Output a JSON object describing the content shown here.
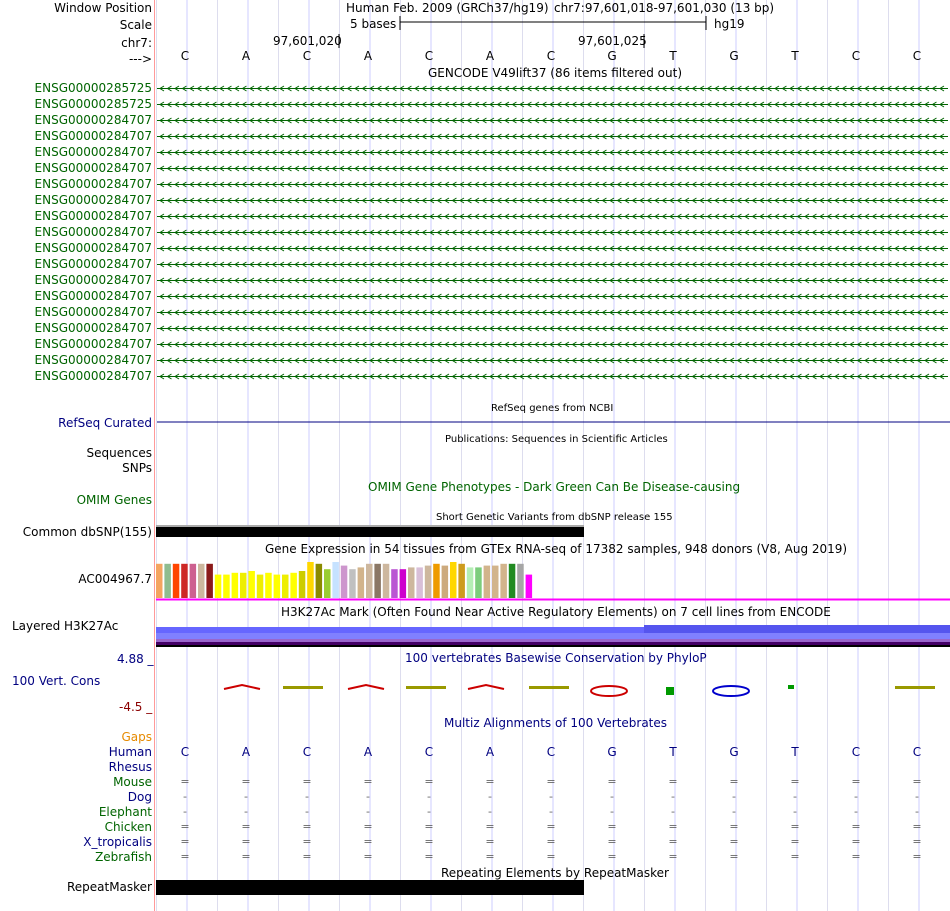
{
  "header": {
    "window_position_label": "Window Position",
    "scale_label": "Scale",
    "chr_label": "chr7:",
    "strand_label": "--->",
    "assembly": "Human Feb. 2009 (GRCh37/hg19)",
    "position": "chr7:97,601,018-97,601,030 (13 bp)",
    "scale_text": "5 bases",
    "db": "hg19",
    "coord1": "97,601,020",
    "coord2": "97,601,025"
  },
  "bases": [
    "C",
    "A",
    "C",
    "A",
    "C",
    "A",
    "C",
    "G",
    "T",
    "G",
    "T",
    "C",
    "C"
  ],
  "gencode": {
    "title": "GENCODE V49lift37 (86 items filtered out)",
    "genes": [
      "ENSG00000285725",
      "ENSG00000285725",
      "ENSG00000284707",
      "ENSG00000284707",
      "ENSG00000284707",
      "ENSG00000284707",
      "ENSG00000284707",
      "ENSG00000284707",
      "ENSG00000284707",
      "ENSG00000284707",
      "ENSG00000284707",
      "ENSG00000284707",
      "ENSG00000284707",
      "ENSG00000284707",
      "ENSG00000284707",
      "ENSG00000284707",
      "ENSG00000284707",
      "ENSG00000284707",
      "ENSG00000284707"
    ]
  },
  "refseq": {
    "title": "RefSeq genes from NCBI",
    "label": "RefSeq Curated"
  },
  "publications": {
    "title": "Publications: Sequences in Scientific Articles",
    "label1": "Sequences",
    "label2": "SNPs"
  },
  "omim": {
    "title": "OMIM Gene Phenotypes - Dark Green Can Be Disease-causing",
    "label": "OMIM Genes"
  },
  "dbsnp": {
    "title": "Short Genetic Variants from dbSNP release 155",
    "label": "Common dbSNP(155)"
  },
  "gtex": {
    "title": "Gene Expression in 54 tissues from GTEx RNA-seq of 17382 samples, 948 donors (V8, Aug 2019)",
    "label": "AC004967.7",
    "bar_colors": [
      "#f4a460",
      "#8fbc8f",
      "#ff4500",
      "#cd2626",
      "#cd6090",
      "#cdb79e",
      "#8b1a1a",
      "#ffff00",
      "#ffff00",
      "#ffff00",
      "#eeee00",
      "#ffff00",
      "#eeee00",
      "#ffff00",
      "#ffff00",
      "#eeee00",
      "#ffff00",
      "#cdcd00",
      "#ffd700",
      "#8b8b00",
      "#9acd32",
      "#c6e2ff",
      "#cd96cd",
      "#c0c0c0",
      "#d2b48c",
      "#cdb79e",
      "#8b7765",
      "#cdb79e",
      "#ba55d3",
      "#cd00cd",
      "#cdb79e",
      "#d8bfd8",
      "#cdb79e",
      "#ee9a00",
      "#cdaa7d",
      "#ffd700",
      "#cd9b1d",
      "#b4eeb4",
      "#7ccd7c",
      "#d2b48c",
      "#d2b48c",
      "#d2b48c",
      "#228b22",
      "#a6a6a6",
      "#ff00ff"
    ],
    "bar_levels": [
      0.95,
      0.95,
      0.95,
      0.95,
      0.95,
      0.95,
      0.95,
      0.65,
      0.65,
      0.7,
      0.7,
      0.75,
      0.65,
      0.7,
      0.65,
      0.65,
      0.7,
      0.75,
      1.0,
      0.95,
      0.8,
      1.0,
      0.9,
      0.8,
      0.85,
      0.95,
      0.95,
      0.95,
      0.8,
      0.8,
      0.85,
      0.85,
      0.9,
      0.95,
      0.9,
      1.0,
      0.95,
      0.85,
      0.85,
      0.9,
      0.9,
      0.95,
      0.95,
      0.95,
      0.65
    ],
    "baseline_color": "#ff00ff"
  },
  "h3k27ac": {
    "title": "H3K27Ac Mark (Often Found Near Active Regulatory Elements) on 7 cell lines from ENCODE",
    "label": "Layered H3K27Ac"
  },
  "phylop": {
    "title": "100 vertebrates Basewise Conservation by PhyloP",
    "label": "100 Vert. Cons",
    "ymax": "4.88 _",
    "ymin": "-4.5 _"
  },
  "multiz": {
    "title": "Multiz Alignments of 100 Vertebrates",
    "gaps_label": "Gaps",
    "species": [
      {
        "name": "Human",
        "color": "#000080",
        "row": [
          "C",
          "A",
          "C",
          "A",
          "C",
          "A",
          "C",
          "G",
          "T",
          "G",
          "T",
          "C",
          "C"
        ]
      },
      {
        "name": "Rhesus",
        "color": "#000080",
        "row": [
          "",
          "",
          "",
          "",
          "",
          "",
          "",
          "",
          "",
          "",
          "",
          "",
          ""
        ]
      },
      {
        "name": "Mouse",
        "color": "#006400",
        "row": [
          "=",
          "=",
          "=",
          "=",
          "=",
          "=",
          "=",
          "=",
          "=",
          "=",
          "=",
          "=",
          "="
        ]
      },
      {
        "name": "Dog",
        "color": "#000080",
        "row": [
          "-",
          "-",
          "-",
          "-",
          "-",
          "-",
          "-",
          "-",
          "-",
          "-",
          "-",
          "-",
          "-"
        ]
      },
      {
        "name": "Elephant",
        "color": "#006400",
        "row": [
          "-",
          "-",
          "-",
          "-",
          "-",
          "-",
          "-",
          "-",
          "-",
          "-",
          "-",
          "-",
          "-"
        ]
      },
      {
        "name": "Chicken",
        "color": "#006400",
        "row": [
          "=",
          "=",
          "=",
          "=",
          "=",
          "=",
          "=",
          "=",
          "=",
          "=",
          "=",
          "=",
          "="
        ]
      },
      {
        "name": "X_tropicalis",
        "color": "#000080",
        "row": [
          "=",
          "=",
          "=",
          "=",
          "=",
          "=",
          "=",
          "=",
          "=",
          "=",
          "=",
          "=",
          "="
        ]
      },
      {
        "name": "Zebrafish",
        "color": "#006400",
        "row": [
          "=",
          "=",
          "=",
          "=",
          "=",
          "=",
          "=",
          "=",
          "=",
          "=",
          "=",
          "=",
          "="
        ]
      }
    ]
  },
  "repeatmasker": {
    "title": "Repeating Elements by RepeatMasker",
    "label": "RepeatMasker"
  }
}
